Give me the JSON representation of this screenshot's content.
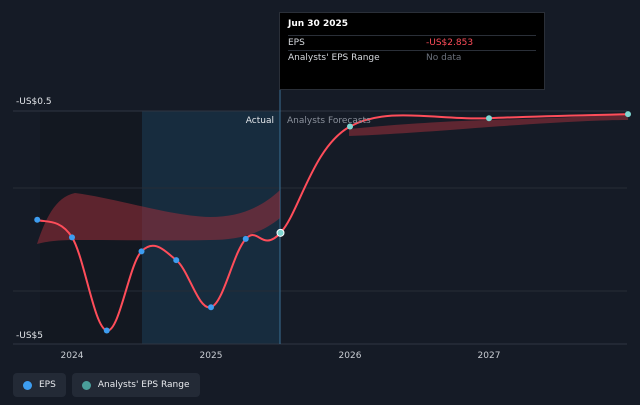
{
  "chart_data": {
    "type": "line",
    "y_axis_labels": [
      "-US$0.5",
      "-US$5"
    ],
    "x_tick_labels": [
      "2024",
      "2025",
      "2026",
      "2027"
    ],
    "region_labels": {
      "actual": "Actual",
      "forecast": "Analysts Forecasts"
    },
    "actual_eps": {
      "name": "EPS",
      "points": [
        {
          "x": 2023.75,
          "y": -2.6
        },
        {
          "x": 2024.0,
          "y": -2.94
        },
        {
          "x": 2024.25,
          "y": -4.74
        },
        {
          "x": 2024.5,
          "y": -3.21
        },
        {
          "x": 2024.75,
          "y": -3.38
        },
        {
          "x": 2025.0,
          "y": -4.29
        },
        {
          "x": 2025.25,
          "y": -2.97
        },
        {
          "x": 2025.5,
          "y": -2.853
        }
      ]
    },
    "forecast_eps": {
      "points": [
        {
          "x": 2026.0,
          "y": -0.8
        },
        {
          "x": 2027.0,
          "y": -0.64
        },
        {
          "x": 2028.0,
          "y": -0.56
        }
      ]
    },
    "colors": {
      "eps_line": "#ff4d5a",
      "eps_dot": "#3d9df0",
      "forecast_dot": "#7fd6d1",
      "range_fill": "#b53a45",
      "highlight": "#1a3a52"
    }
  },
  "tooltip": {
    "date": "Jun 30 2025",
    "eps_label": "EPS",
    "eps_value": "-US$2.853",
    "range_label": "Analysts' EPS Range",
    "range_value": "No data"
  },
  "legend": {
    "eps_label": "EPS",
    "eps_color": "#3d9df0",
    "range_label": "Analysts' EPS Range",
    "range_color": "#4a9e9a"
  }
}
